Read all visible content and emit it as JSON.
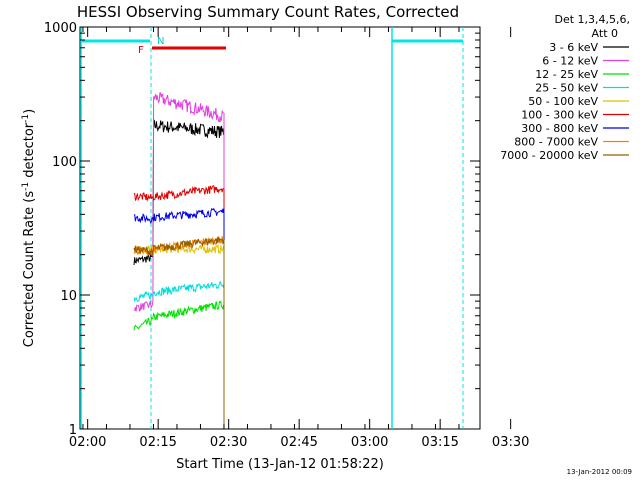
{
  "chart_data": {
    "type": "line",
    "title": "HESSI Observing Summary Count Rates, Corrected",
    "xlabel": "Start Time (13-Jan-12 01:58:22)",
    "ylabel_main": "Corrected Count Rate (s",
    "ylabel_sup1": "-1",
    "ylabel_mid": " detector",
    "ylabel_sup2": "-1",
    "ylabel_end": ")",
    "yscale": "log",
    "ylim": [
      1,
      1000
    ],
    "x_ticks": [
      "02:00",
      "02:15",
      "02:30",
      "02:45",
      "03:00",
      "03:15",
      "03:30"
    ],
    "y_ticks": [
      "1",
      "10",
      "100",
      "1000"
    ],
    "legend_header": [
      "Det 1,3,4,5,6,",
      "Att 0"
    ],
    "series": [
      {
        "name": "3 - 6 keV",
        "color": "#000000",
        "levels": [
          18,
          19,
          185,
          165
        ]
      },
      {
        "name": "6 - 12 keV",
        "color": "#e040e0",
        "levels": [
          8,
          8.5,
          300,
          215
        ]
      },
      {
        "name": "12 - 25 keV",
        "color": "#00e000",
        "levels": [
          5.5,
          6.5,
          6.8,
          8.5
        ]
      },
      {
        "name": "25 - 50 keV",
        "color": "#00dddd",
        "levels": [
          9.5,
          10,
          10.5,
          12
        ]
      },
      {
        "name": "50 - 100 keV",
        "color": "#e0c000",
        "levels": [
          22,
          22,
          22,
          22
        ]
      },
      {
        "name": "100 - 300 keV",
        "color": "#e00000",
        "levels": [
          55,
          53,
          54,
          63
        ]
      },
      {
        "name": "300 - 800 keV",
        "color": "#0000ee",
        "levels": [
          38,
          37,
          38,
          42
        ]
      },
      {
        "name": "800 - 7000 keV",
        "color": "#ff8000",
        "levels": [
          22,
          21,
          22,
          26
        ]
      },
      {
        "name": "7000 - 20000 keV",
        "color": "#906000",
        "levels": [
          22,
          21,
          22,
          26
        ]
      }
    ],
    "annotations": {
      "night_label": "N",
      "flare_label": "F"
    },
    "footer_date": "13-Jan-2012 00:09"
  }
}
